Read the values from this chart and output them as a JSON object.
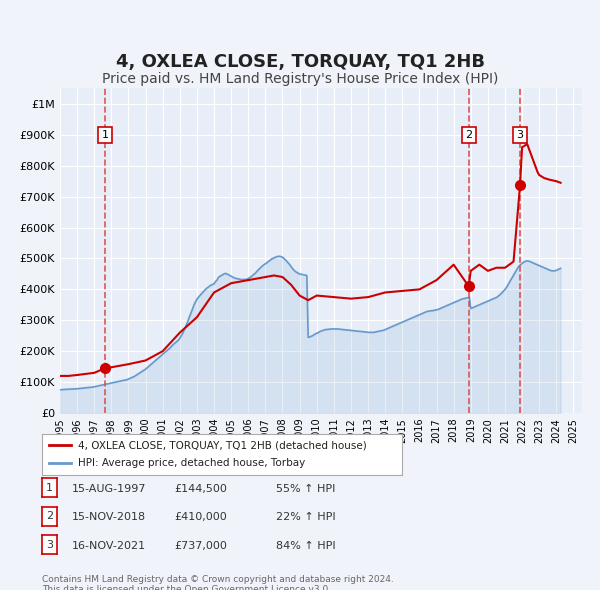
{
  "title": "4, OXLEA CLOSE, TORQUAY, TQ1 2HB",
  "subtitle": "Price paid vs. HM Land Registry's House Price Index (HPI)",
  "title_fontsize": 13,
  "subtitle_fontsize": 10,
  "background_color": "#f0f4fa",
  "plot_bg_color": "#e8eef8",
  "grid_color": "#ffffff",
  "ylim": [
    0,
    1050000
  ],
  "xlim_start": 1995.0,
  "xlim_end": 2025.5,
  "ytick_labels": [
    "£0",
    "£100K",
    "£200K",
    "£300K",
    "£400K",
    "£500K",
    "£600K",
    "£700K",
    "£800K",
    "£900K",
    "£1M"
  ],
  "ytick_values": [
    0,
    100000,
    200000,
    300000,
    400000,
    500000,
    600000,
    700000,
    800000,
    900000,
    1000000
  ],
  "red_line_color": "#cc0000",
  "blue_line_color": "#6699cc",
  "sale_marker_color": "#cc0000",
  "sale_vline_color": "#dd4444",
  "transaction_labels": [
    "1",
    "2",
    "3"
  ],
  "transaction_dates_decimal": [
    1997.62,
    2018.88,
    2021.88
  ],
  "transaction_prices": [
    144500,
    410000,
    737000
  ],
  "transaction_text": [
    [
      "1",
      "15-AUG-1997",
      "£144,500",
      "55% ↑ HPI"
    ],
    [
      "2",
      "15-NOV-2018",
      "£410,000",
      "22% ↑ HPI"
    ],
    [
      "3",
      "16-NOV-2021",
      "£737,000",
      "84% ↑ HPI"
    ]
  ],
  "legend_label_red": "4, OXLEA CLOSE, TORQUAY, TQ1 2HB (detached house)",
  "legend_label_blue": "HPI: Average price, detached house, Torbay",
  "footnote": "Contains HM Land Registry data © Crown copyright and database right 2024.\nThis data is licensed under the Open Government Licence v3.0.",
  "hpi_data": {
    "years": [
      1995.0,
      1995.08,
      1995.17,
      1995.25,
      1995.33,
      1995.42,
      1995.5,
      1995.58,
      1995.67,
      1995.75,
      1995.83,
      1995.92,
      1996.0,
      1996.08,
      1996.17,
      1996.25,
      1996.33,
      1996.42,
      1996.5,
      1996.58,
      1996.67,
      1996.75,
      1996.83,
      1996.92,
      1997.0,
      1997.08,
      1997.17,
      1997.25,
      1997.33,
      1997.42,
      1997.5,
      1997.58,
      1997.67,
      1997.75,
      1997.83,
      1997.92,
      1998.0,
      1998.08,
      1998.17,
      1998.25,
      1998.33,
      1998.42,
      1998.5,
      1998.58,
      1998.67,
      1998.75,
      1998.83,
      1998.92,
      1999.0,
      1999.08,
      1999.17,
      1999.25,
      1999.33,
      1999.42,
      1999.5,
      1999.58,
      1999.67,
      1999.75,
      1999.83,
      1999.92,
      2000.0,
      2000.08,
      2000.17,
      2000.25,
      2000.33,
      2000.42,
      2000.5,
      2000.58,
      2000.67,
      2000.75,
      2000.83,
      2000.92,
      2001.0,
      2001.08,
      2001.17,
      2001.25,
      2001.33,
      2001.42,
      2001.5,
      2001.58,
      2001.67,
      2001.75,
      2001.83,
      2001.92,
      2002.0,
      2002.08,
      2002.17,
      2002.25,
      2002.33,
      2002.42,
      2002.5,
      2002.58,
      2002.67,
      2002.75,
      2002.83,
      2002.92,
      2003.0,
      2003.08,
      2003.17,
      2003.25,
      2003.33,
      2003.42,
      2003.5,
      2003.58,
      2003.67,
      2003.75,
      2003.83,
      2003.92,
      2004.0,
      2004.08,
      2004.17,
      2004.25,
      2004.33,
      2004.42,
      2004.5,
      2004.58,
      2004.67,
      2004.75,
      2004.83,
      2004.92,
      2005.0,
      2005.08,
      2005.17,
      2005.25,
      2005.33,
      2005.42,
      2005.5,
      2005.58,
      2005.67,
      2005.75,
      2005.83,
      2005.92,
      2006.0,
      2006.08,
      2006.17,
      2006.25,
      2006.33,
      2006.42,
      2006.5,
      2006.58,
      2006.67,
      2006.75,
      2006.83,
      2006.92,
      2007.0,
      2007.08,
      2007.17,
      2007.25,
      2007.33,
      2007.42,
      2007.5,
      2007.58,
      2007.67,
      2007.75,
      2007.83,
      2007.92,
      2008.0,
      2008.08,
      2008.17,
      2008.25,
      2008.33,
      2008.42,
      2008.5,
      2008.58,
      2008.67,
      2008.75,
      2008.83,
      2008.92,
      2009.0,
      2009.08,
      2009.17,
      2009.25,
      2009.33,
      2009.42,
      2009.5,
      2009.58,
      2009.67,
      2009.75,
      2009.83,
      2009.92,
      2010.0,
      2010.08,
      2010.17,
      2010.25,
      2010.33,
      2010.42,
      2010.5,
      2010.58,
      2010.67,
      2010.75,
      2010.83,
      2010.92,
      2011.0,
      2011.08,
      2011.17,
      2011.25,
      2011.33,
      2011.42,
      2011.5,
      2011.58,
      2011.67,
      2011.75,
      2011.83,
      2011.92,
      2012.0,
      2012.08,
      2012.17,
      2012.25,
      2012.33,
      2012.42,
      2012.5,
      2012.58,
      2012.67,
      2012.75,
      2012.83,
      2012.92,
      2013.0,
      2013.08,
      2013.17,
      2013.25,
      2013.33,
      2013.42,
      2013.5,
      2013.58,
      2013.67,
      2013.75,
      2013.83,
      2013.92,
      2014.0,
      2014.08,
      2014.17,
      2014.25,
      2014.33,
      2014.42,
      2014.5,
      2014.58,
      2014.67,
      2014.75,
      2014.83,
      2014.92,
      2015.0,
      2015.08,
      2015.17,
      2015.25,
      2015.33,
      2015.42,
      2015.5,
      2015.58,
      2015.67,
      2015.75,
      2015.83,
      2015.92,
      2016.0,
      2016.08,
      2016.17,
      2016.25,
      2016.33,
      2016.42,
      2016.5,
      2016.58,
      2016.67,
      2016.75,
      2016.83,
      2016.92,
      2017.0,
      2017.08,
      2017.17,
      2017.25,
      2017.33,
      2017.42,
      2017.5,
      2017.58,
      2017.67,
      2017.75,
      2017.83,
      2017.92,
      2018.0,
      2018.08,
      2018.17,
      2018.25,
      2018.33,
      2018.42,
      2018.5,
      2018.58,
      2018.67,
      2018.75,
      2018.83,
      2018.92,
      2019.0,
      2019.08,
      2019.17,
      2019.25,
      2019.33,
      2019.42,
      2019.5,
      2019.58,
      2019.67,
      2019.75,
      2019.83,
      2019.92,
      2020.0,
      2020.08,
      2020.17,
      2020.25,
      2020.33,
      2020.42,
      2020.5,
      2020.58,
      2020.67,
      2020.75,
      2020.83,
      2020.92,
      2021.0,
      2021.08,
      2021.17,
      2021.25,
      2021.33,
      2021.42,
      2021.5,
      2021.58,
      2021.67,
      2021.75,
      2021.83,
      2021.92,
      2022.0,
      2022.08,
      2022.17,
      2022.25,
      2022.33,
      2022.42,
      2022.5,
      2022.58,
      2022.67,
      2022.75,
      2022.83,
      2022.92,
      2023.0,
      2023.08,
      2023.17,
      2023.25,
      2023.33,
      2023.42,
      2023.5,
      2023.58,
      2023.67,
      2023.75,
      2023.83,
      2023.92,
      2024.0,
      2024.08,
      2024.17,
      2024.25
    ],
    "values": [
      75000,
      75500,
      76000,
      76200,
      76500,
      76800,
      77000,
      77200,
      77500,
      77800,
      78000,
      78200,
      78500,
      79000,
      79500,
      80000,
      80500,
      81000,
      81500,
      82000,
      82500,
      83000,
      83500,
      84000,
      85000,
      86000,
      87000,
      88000,
      89000,
      90000,
      91000,
      92000,
      93000,
      94000,
      95000,
      96000,
      97000,
      98000,
      99000,
      100000,
      101000,
      102000,
      103000,
      104000,
      105000,
      106000,
      107000,
      108000,
      110000,
      112000,
      114000,
      116000,
      118000,
      121000,
      124000,
      127000,
      130000,
      133000,
      136000,
      139000,
      142000,
      146000,
      150000,
      154000,
      158000,
      162000,
      166000,
      170000,
      174000,
      178000,
      182000,
      186000,
      190000,
      194000,
      198000,
      202000,
      206000,
      210000,
      215000,
      220000,
      224000,
      228000,
      232000,
      236000,
      242000,
      250000,
      258000,
      268000,
      278000,
      290000,
      302000,
      314000,
      326000,
      338000,
      350000,
      360000,
      368000,
      374000,
      380000,
      385000,
      390000,
      395000,
      400000,
      404000,
      408000,
      411000,
      414000,
      416000,
      418000,
      425000,
      430000,
      438000,
      442000,
      445000,
      448000,
      450000,
      452000,
      450000,
      448000,
      445000,
      442000,
      440000,
      438000,
      436000,
      435000,
      434000,
      433000,
      432000,
      432000,
      432000,
      432000,
      433000,
      435000,
      438000,
      441000,
      445000,
      449000,
      453000,
      458000,
      463000,
      468000,
      472000,
      476000,
      480000,
      483000,
      486000,
      490000,
      493000,
      497000,
      500000,
      502000,
      504000,
      506000,
      507000,
      507000,
      506000,
      504000,
      500000,
      496000,
      491000,
      486000,
      480000,
      474000,
      468000,
      462000,
      458000,
      455000,
      452000,
      450000,
      449000,
      448000,
      447000,
      446000,
      445000,
      245000,
      246000,
      248000,
      250000,
      253000,
      256000,
      258000,
      260000,
      263000,
      265000,
      267000,
      268000,
      270000,
      270000,
      271000,
      271000,
      272000,
      272000,
      272000,
      272000,
      272000,
      272000,
      271000,
      271000,
      270000,
      270000,
      269000,
      269000,
      268000,
      268000,
      267000,
      267000,
      266000,
      266000,
      265000,
      265000,
      264000,
      264000,
      263000,
      263000,
      262000,
      262000,
      261000,
      261000,
      261000,
      261000,
      261000,
      262000,
      263000,
      264000,
      265000,
      266000,
      267000,
      268000,
      270000,
      272000,
      274000,
      276000,
      278000,
      280000,
      282000,
      284000,
      286000,
      288000,
      290000,
      292000,
      294000,
      296000,
      298000,
      300000,
      302000,
      304000,
      306000,
      308000,
      310000,
      312000,
      314000,
      316000,
      318000,
      320000,
      322000,
      324000,
      326000,
      328000,
      329000,
      330000,
      331000,
      331000,
      332000,
      333000,
      334000,
      335000,
      337000,
      339000,
      341000,
      343000,
      345000,
      347000,
      349000,
      351000,
      353000,
      355000,
      357000,
      359000,
      361000,
      363000,
      365000,
      367000,
      369000,
      370000,
      371000,
      372000,
      373000,
      374000,
      338000,
      340000,
      342000,
      344000,
      346000,
      348000,
      350000,
      352000,
      354000,
      356000,
      358000,
      360000,
      362000,
      364000,
      366000,
      368000,
      370000,
      372000,
      374000,
      377000,
      381000,
      385000,
      390000,
      395000,
      400000,
      406000,
      414000,
      422000,
      430000,
      438000,
      446000,
      454000,
      462000,
      470000,
      476000,
      480000,
      484000,
      488000,
      490000,
      492000,
      492000,
      491000,
      489000,
      487000,
      485000,
      483000,
      481000,
      479000,
      477000,
      475000,
      473000,
      471000,
      469000,
      467000,
      465000,
      463000,
      461000,
      460000,
      460000,
      460000,
      462000,
      464000,
      466000,
      468000
    ]
  },
  "red_line_data": {
    "years": [
      1995.0,
      1995.5,
      1996.0,
      1997.0,
      1997.62,
      1998.0,
      1999.0,
      2000.0,
      2001.0,
      2002.0,
      2003.0,
      2004.0,
      2005.0,
      2006.0,
      2007.0,
      2007.5,
      2008.0,
      2008.5,
      2009.0,
      2009.5,
      2010.0,
      2011.0,
      2012.0,
      2013.0,
      2014.0,
      2015.0,
      2016.0,
      2017.0,
      2018.0,
      2018.88,
      2019.0,
      2019.5,
      2020.0,
      2020.5,
      2021.0,
      2021.5,
      2021.88,
      2022.0,
      2022.3,
      2022.5,
      2022.7,
      2022.9,
      2023.0,
      2023.3,
      2023.6,
      2024.0,
      2024.25
    ],
    "values": [
      120000,
      120000,
      123000,
      130000,
      144500,
      148000,
      158000,
      170000,
      200000,
      260000,
      310000,
      390000,
      420000,
      430000,
      440000,
      445000,
      440000,
      415000,
      380000,
      365000,
      380000,
      375000,
      370000,
      375000,
      390000,
      395000,
      400000,
      430000,
      480000,
      410000,
      460000,
      480000,
      460000,
      470000,
      470000,
      490000,
      737000,
      860000,
      870000,
      840000,
      810000,
      780000,
      770000,
      760000,
      755000,
      750000,
      745000
    ]
  }
}
